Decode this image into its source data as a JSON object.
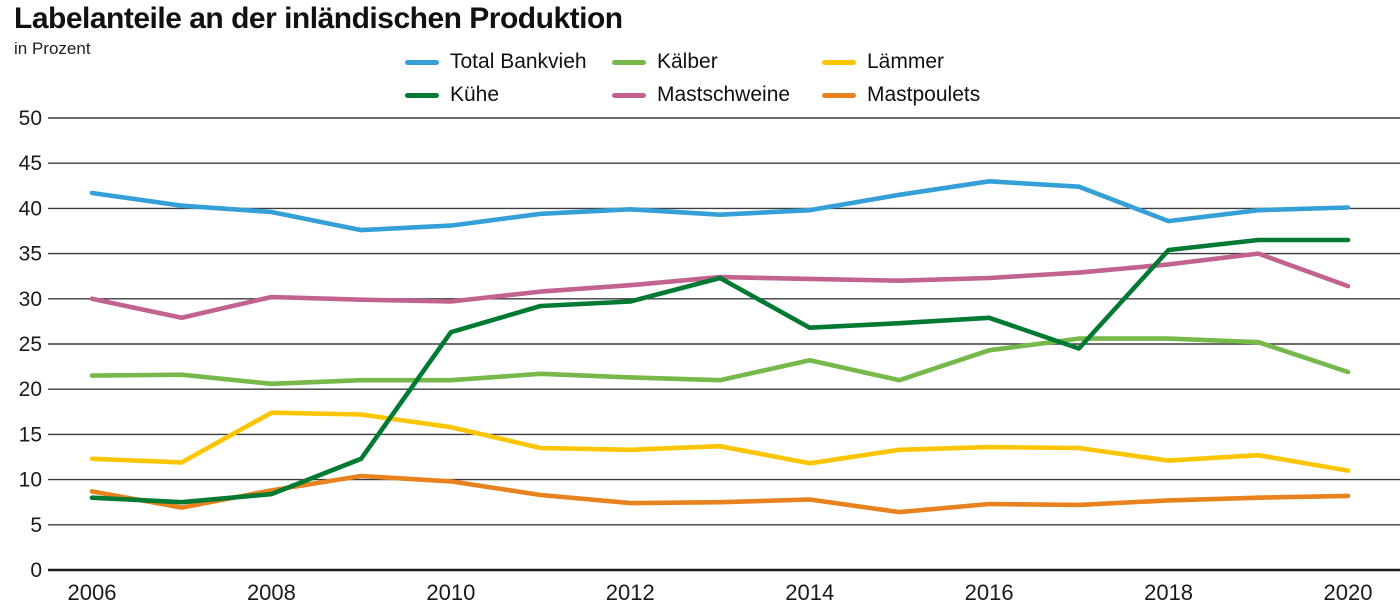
{
  "header": {
    "title": "Labelanteile an der inländischen Produktion",
    "subtitle": "in Prozent"
  },
  "chart_data": {
    "type": "line",
    "title": "Labelanteile an der inländischen Produktion",
    "subtitle": "in Prozent",
    "xlabel": "",
    "ylabel": "in Prozent",
    "x": [
      2006,
      2007,
      2008,
      2009,
      2010,
      2011,
      2012,
      2013,
      2014,
      2015,
      2016,
      2017,
      2018,
      2019,
      2020
    ],
    "x_tick_labels": [
      "2006",
      "2008",
      "2010",
      "2012",
      "2014",
      "2016",
      "2018",
      "2020"
    ],
    "y_ticks": [
      0,
      5,
      10,
      15,
      20,
      25,
      30,
      35,
      40,
      45,
      50
    ],
    "ylim": [
      0,
      50
    ],
    "grid": "horizontal",
    "legend_position": "top-center",
    "colors": {
      "grid": "#3c3c3c",
      "axis": "#1a1a1a",
      "text": "#1a1a1a",
      "background": "#ffffff"
    },
    "series": [
      {
        "name": "Total Bankvieh",
        "color": "#35a0d8",
        "values": [
          41.7,
          40.3,
          39.6,
          37.6,
          38.1,
          39.4,
          39.9,
          39.3,
          39.8,
          41.5,
          43.0,
          42.4,
          38.6,
          39.8,
          40.1
        ]
      },
      {
        "name": "Kühe",
        "color": "#007a33",
        "values": [
          8.0,
          7.5,
          8.4,
          12.3,
          26.3,
          29.2,
          29.7,
          32.3,
          26.8,
          27.3,
          27.9,
          24.5,
          35.4,
          36.5,
          36.5
        ]
      },
      {
        "name": "Kälber",
        "color": "#76b84a",
        "values": [
          21.5,
          21.6,
          20.6,
          21.0,
          21.0,
          21.7,
          21.3,
          21.0,
          23.2,
          21.0,
          24.3,
          25.6,
          25.6,
          25.2,
          21.9
        ]
      },
      {
        "name": "Mastschweine",
        "color": "#c2628f",
        "values": [
          30.0,
          27.9,
          30.2,
          29.9,
          29.7,
          30.8,
          31.5,
          32.4,
          32.2,
          32.0,
          32.3,
          32.9,
          33.8,
          35.0,
          31.4
        ]
      },
      {
        "name": "Lämmer",
        "color": "#fcc500",
        "values": [
          12.3,
          11.9,
          17.4,
          17.2,
          15.8,
          13.5,
          13.3,
          13.7,
          11.8,
          13.3,
          13.6,
          13.5,
          12.1,
          12.7,
          11.0
        ]
      },
      {
        "name": "Mastpoulets",
        "color": "#e8821e",
        "values": [
          8.7,
          6.9,
          8.8,
          10.4,
          9.8,
          8.3,
          7.4,
          7.5,
          7.8,
          6.4,
          7.3,
          7.2,
          7.7,
          8.0,
          8.2
        ]
      }
    ],
    "legend": [
      "Total Bankvieh",
      "Kälber",
      "Lämmer",
      "Kühe",
      "Mastschweine",
      "Mastpoulets"
    ],
    "draw_order": [
      "Total Bankvieh",
      "Mastschweine",
      "Lämmer",
      "Mastpoulets",
      "Kälber",
      "Kühe"
    ]
  }
}
